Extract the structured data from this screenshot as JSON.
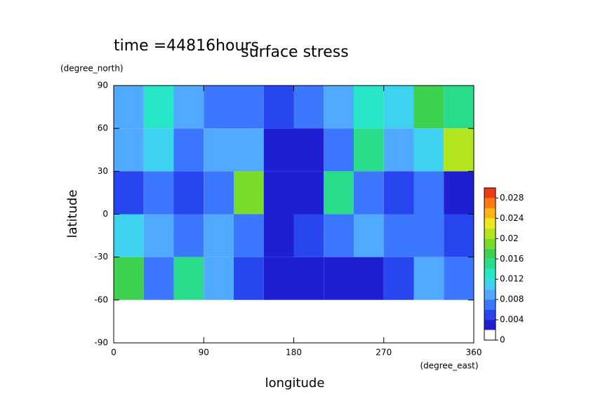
{
  "chart_data": {
    "type": "contour",
    "title": "surface stress",
    "annotation": "time =44816hours",
    "xlabel": "longitude",
    "xunit": "(degree_east)",
    "ylabel": "latitude",
    "yunit": "(degree_north)",
    "x": [
      15,
      45,
      75,
      105,
      135,
      165,
      195,
      225,
      255,
      285,
      315,
      345
    ],
    "y": [
      75,
      45,
      15,
      -15,
      -45,
      -75
    ],
    "values": [
      [
        0.008,
        0.012,
        0.008,
        0.006,
        0.006,
        0.004,
        0.006,
        0.008,
        0.012,
        0.01,
        0.016,
        0.014
      ],
      [
        0.008,
        0.01,
        0.006,
        0.008,
        0.008,
        0.002,
        0.002,
        0.006,
        0.014,
        0.008,
        0.01,
        0.02
      ],
      [
        0.004,
        0.006,
        0.004,
        0.006,
        0.018,
        0.002,
        0.002,
        0.014,
        0.006,
        0.004,
        0.006,
        0.002
      ],
      [
        0.01,
        0.008,
        0.006,
        0.008,
        0.006,
        0.002,
        0.004,
        0.006,
        0.008,
        0.006,
        0.006,
        0.004
      ],
      [
        0.016,
        0.006,
        0.014,
        0.008,
        0.004,
        0.002,
        0.002,
        0.002,
        0.002,
        0.004,
        0.008,
        0.006
      ],
      [
        0,
        0,
        0,
        0,
        0,
        0,
        0,
        0,
        0,
        0,
        0,
        0
      ]
    ],
    "xlim": [
      0,
      360
    ],
    "xticks": [
      0,
      90,
      180,
      270,
      360
    ],
    "ylim": [
      -90,
      90
    ],
    "yticks": [
      -90,
      -60,
      -30,
      0,
      30,
      60,
      90
    ],
    "zlim": [
      0,
      0.03
    ],
    "zticks": [
      0,
      0.004,
      0.008,
      0.012,
      0.016,
      0.02,
      0.024,
      0.028
    ],
    "colors": [
      "#ffffff",
      "#1e1ed2",
      "#2846f0",
      "#3c78ff",
      "#50aaff",
      "#3cd2f0",
      "#28e6c8",
      "#28dc8c",
      "#3cd250",
      "#78dc28",
      "#b4e61e",
      "#f0e61e",
      "#ffb414",
      "#ff7814",
      "#f03c14"
    ]
  }
}
